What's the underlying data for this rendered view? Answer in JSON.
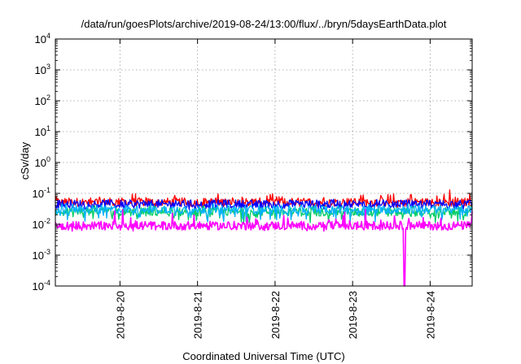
{
  "chart_data": {
    "type": "line",
    "title": "/data/run/goesPlots/archive/2019-08-24/13:00/flux/../bryn/5daysEarthData.plot",
    "xlabel": "Coordinated Universal Time (UTC)",
    "ylabel": "cSv/day",
    "yscale": "log",
    "ylim": [
      0.0001,
      10000
    ],
    "xlim": [
      "2019-08-19T04:00",
      "2019-08-24T13:00"
    ],
    "x_ticks": [
      "2019-8-20",
      "2019-8-21",
      "2019-8-22",
      "2019-8-23",
      "2019-8-24"
    ],
    "y_ticks": [
      {
        "base": "10",
        "exp": "-4"
      },
      {
        "base": "10",
        "exp": "-3"
      },
      {
        "base": "10",
        "exp": "-2"
      },
      {
        "base": "10",
        "exp": "-1"
      },
      {
        "base": "10",
        "exp": "0"
      },
      {
        "base": "10",
        "exp": "1"
      },
      {
        "base": "10",
        "exp": "2"
      },
      {
        "base": "10",
        "exp": "3"
      },
      {
        "base": "10",
        "exp": "4"
      }
    ],
    "grid": true,
    "legend": "none",
    "series": [
      {
        "color": "#ff0000",
        "typical": 0.052,
        "min": 0.035,
        "max": 0.13,
        "spikes": [
          [
            "2019-08-23T18:00",
            0.09
          ],
          [
            "2019-08-24T06:00",
            0.13
          ]
        ]
      },
      {
        "color": "#0000ff",
        "typical": 0.045,
        "min": 0.03,
        "max": 0.08
      },
      {
        "color": "#00cc66",
        "typical": 0.025,
        "min": 0.011,
        "max": 0.05
      },
      {
        "color": "#00b0ff",
        "typical": 0.03,
        "min": 0.012,
        "max": 0.06
      },
      {
        "color": "#ff00ff",
        "typical": 0.009,
        "min": 0.006,
        "max": 0.055,
        "dropout": [
          "2019-08-23T16:00",
          0.0001
        ]
      }
    ]
  }
}
